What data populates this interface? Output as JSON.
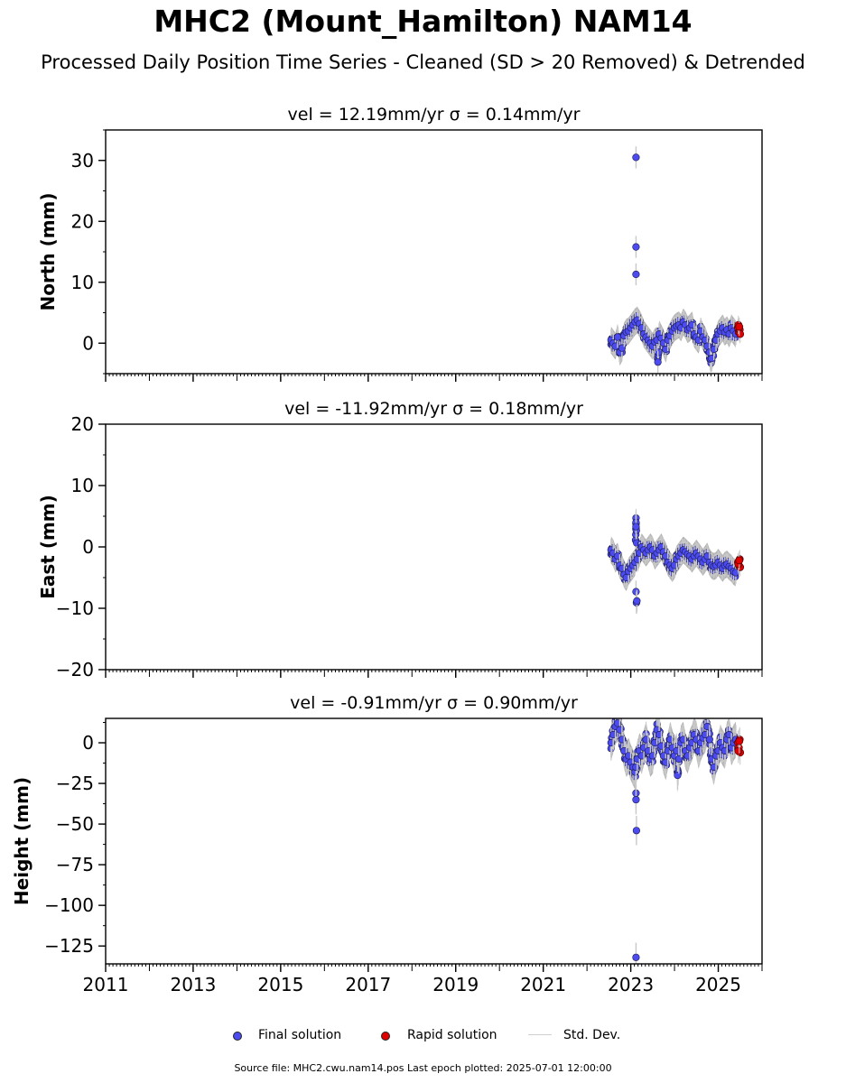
{
  "title": "MHC2 (Mount_Hamilton) NAM14",
  "subtitle": "Processed Daily Position Time Series - Cleaned (SD > 20 Removed) & Detrended",
  "legend": {
    "final": "Final solution",
    "rapid": "Rapid solution",
    "std": "Std. Dev."
  },
  "source_note": "Source file: MHC2.cwu.nam14.pos  Last epoch plotted: 2025-07-01 12:00:00",
  "colors": {
    "final": "#4b4bef",
    "rapid": "#e00000",
    "std_dev": "#c8c8c8",
    "band": "#555555"
  },
  "chart_data": [
    {
      "type": "scatter",
      "panel": "north",
      "title": "vel = 12.19mm/yr   σ = 0.14mm/yr",
      "ylabel": "North (mm)",
      "xlim": [
        2011.0,
        2026.0
      ],
      "ylim": [
        -5,
        35
      ],
      "yticks": [
        0,
        10,
        20,
        30
      ],
      "xticks": [],
      "series": [
        {
          "name": "Final solution",
          "x": [
            2022.55,
            2022.6,
            2022.65,
            2022.7,
            2022.75,
            2022.8,
            2022.85,
            2022.9,
            2022.95,
            2023.0,
            2023.05,
            2023.1,
            2023.15,
            2023.2,
            2023.25,
            2023.3,
            2023.35,
            2023.4,
            2023.45,
            2023.5,
            2023.55,
            2023.6,
            2023.65,
            2023.7,
            2023.75,
            2023.8,
            2023.85,
            2023.9,
            2023.95,
            2024.0,
            2024.05,
            2024.1,
            2024.15,
            2024.2,
            2024.25,
            2024.3,
            2024.35,
            2024.4,
            2024.45,
            2024.5,
            2024.55,
            2024.6,
            2024.65,
            2024.7,
            2024.75,
            2024.8,
            2024.85,
            2024.9,
            2024.95,
            2025.0,
            2025.05,
            2025.1,
            2025.15,
            2025.2,
            2025.25,
            2025.3,
            2025.35,
            2025.4,
            2023.12,
            2023.12,
            2023.12,
            2023.62,
            2024.82
          ],
          "y": [
            0.5,
            0.0,
            -0.5,
            1.0,
            -1.5,
            -0.8,
            1.2,
            1.8,
            2.0,
            2.5,
            3.0,
            3.5,
            3.8,
            3.2,
            2.5,
            1.5,
            1.0,
            0.5,
            0.0,
            -0.5,
            0.2,
            0.5,
            1.5,
            0.8,
            0.0,
            -1.0,
            0.5,
            1.2,
            2.0,
            2.5,
            2.8,
            3.0,
            2.5,
            3.5,
            3.0,
            2.2,
            2.5,
            3.0,
            1.5,
            1.0,
            0.5,
            2.0,
            1.0,
            0.5,
            -0.5,
            -1.5,
            -2.5,
            -1.0,
            0.5,
            1.5,
            2.0,
            2.5,
            1.8,
            2.2,
            1.5,
            2.5,
            2.0,
            1.5,
            30.5,
            15.8,
            11.3,
            -3.1,
            -2.6
          ],
          "std_dev_mm": 1.0
        },
        {
          "name": "Rapid solution",
          "x": [
            2025.45,
            2025.47,
            2025.49,
            2025.5,
            2025.46,
            2025.48
          ],
          "y": [
            2.5,
            1.8,
            2.2,
            1.5,
            3.0,
            2.7
          ]
        }
      ]
    },
    {
      "type": "scatter",
      "panel": "east",
      "title": "vel = -11.92mm/yr   σ = 0.18mm/yr",
      "ylabel": "East (mm)",
      "xlim": [
        2011.0,
        2026.0
      ],
      "ylim": [
        -20,
        20
      ],
      "yticks": [
        -20,
        -10,
        0,
        10,
        20
      ],
      "xticks": [],
      "series": [
        {
          "name": "Final solution",
          "x": [
            2022.55,
            2022.6,
            2022.65,
            2022.7,
            2022.75,
            2022.8,
            2022.85,
            2022.9,
            2022.95,
            2023.0,
            2023.05,
            2023.1,
            2023.15,
            2023.2,
            2023.25,
            2023.3,
            2023.35,
            2023.4,
            2023.45,
            2023.5,
            2023.55,
            2023.6,
            2023.65,
            2023.7,
            2023.75,
            2023.8,
            2023.85,
            2023.9,
            2023.95,
            2024.0,
            2024.05,
            2024.1,
            2024.15,
            2024.2,
            2024.25,
            2024.3,
            2024.35,
            2024.4,
            2024.45,
            2024.5,
            2024.55,
            2024.6,
            2024.65,
            2024.7,
            2024.75,
            2024.8,
            2024.85,
            2024.9,
            2024.95,
            2025.0,
            2025.05,
            2025.1,
            2025.15,
            2025.2,
            2025.25,
            2025.3,
            2025.35,
            2025.4,
            2023.12,
            2023.12,
            2023.12,
            2023.14,
            2023.13
          ],
          "y": [
            -0.5,
            -1.0,
            -2.0,
            -1.5,
            -3.0,
            -3.5,
            -4.5,
            -5.0,
            -4.0,
            -3.5,
            -3.0,
            -2.5,
            -2.0,
            -1.0,
            0.0,
            -0.5,
            -1.0,
            -0.5,
            0.0,
            -0.5,
            -1.5,
            -1.0,
            -0.5,
            0.0,
            -0.8,
            -1.5,
            -2.5,
            -3.0,
            -3.5,
            -3.0,
            -2.0,
            -1.5,
            -1.0,
            -0.5,
            -0.8,
            -1.2,
            -1.5,
            -2.0,
            -1.5,
            -1.0,
            -1.5,
            -2.0,
            -2.5,
            -2.0,
            -1.5,
            -2.5,
            -3.0,
            -3.2,
            -3.0,
            -2.5,
            -3.0,
            -3.5,
            -3.0,
            -2.8,
            -3.2,
            -3.5,
            -4.0,
            -4.2,
            4.0,
            3.3,
            -7.3,
            -8.8,
            -9.1
          ],
          "std_dev_mm": 1.0
        },
        {
          "name": "Rapid solution",
          "x": [
            2025.45,
            2025.47,
            2025.49,
            2025.5,
            2025.46,
            2025.48
          ],
          "y": [
            -2.5,
            -3.0,
            -2.0,
            -3.3,
            -2.8,
            -2.2
          ]
        }
      ]
    },
    {
      "type": "scatter",
      "panel": "height",
      "title": "vel = -0.91mm/yr   σ = 0.90mm/yr",
      "ylabel": "Height (mm)",
      "xlim": [
        2011.0,
        2026.0
      ],
      "ylim": [
        -136,
        15
      ],
      "yticks": [
        -125,
        -100,
        -75,
        -50,
        -25,
        0
      ],
      "xticks": [
        2011,
        2013,
        2015,
        2017,
        2019,
        2021,
        2023,
        2025
      ],
      "series": [
        {
          "name": "Final solution",
          "x": [
            2022.55,
            2022.6,
            2022.65,
            2022.7,
            2022.75,
            2022.8,
            2022.85,
            2022.9,
            2022.95,
            2023.0,
            2023.05,
            2023.1,
            2023.15,
            2023.2,
            2023.25,
            2023.3,
            2023.35,
            2023.4,
            2023.45,
            2023.5,
            2023.55,
            2023.6,
            2023.65,
            2023.7,
            2023.75,
            2023.8,
            2023.85,
            2023.9,
            2023.95,
            2024.0,
            2024.05,
            2024.1,
            2024.15,
            2024.2,
            2024.25,
            2024.3,
            2024.35,
            2024.4,
            2024.45,
            2024.5,
            2024.55,
            2024.6,
            2024.65,
            2024.7,
            2024.75,
            2024.8,
            2024.85,
            2024.9,
            2024.95,
            2025.0,
            2025.05,
            2025.1,
            2025.15,
            2025.2,
            2025.25,
            2025.3,
            2025.35,
            2025.4,
            2023.12,
            2023.12,
            2023.13,
            2023.12,
            2023.12,
            2024.07
          ],
          "y": [
            0,
            5,
            10,
            12,
            8,
            2,
            -5,
            -10,
            -8,
            -12,
            -15,
            -18,
            -10,
            -5,
            -8,
            -3,
            2,
            -5,
            -10,
            -8,
            0,
            8,
            5,
            -2,
            -8,
            -12,
            -5,
            2,
            -3,
            -8,
            -5,
            -10,
            0,
            2,
            -5,
            -8,
            -3,
            0,
            5,
            2,
            -5,
            0,
            3,
            5,
            10,
            2,
            -10,
            -15,
            -8,
            -5,
            0,
            -3,
            -5,
            2,
            5,
            -3,
            0,
            2,
            -31,
            -35,
            -54,
            -132,
            -15,
            -20
          ],
          "std_dev_mm": 5.0
        },
        {
          "name": "Rapid solution",
          "x": [
            2025.45,
            2025.47,
            2025.49,
            2025.5,
            2025.46,
            2025.48
          ],
          "y": [
            0,
            -3,
            2,
            -6,
            -5,
            1
          ]
        }
      ]
    }
  ]
}
